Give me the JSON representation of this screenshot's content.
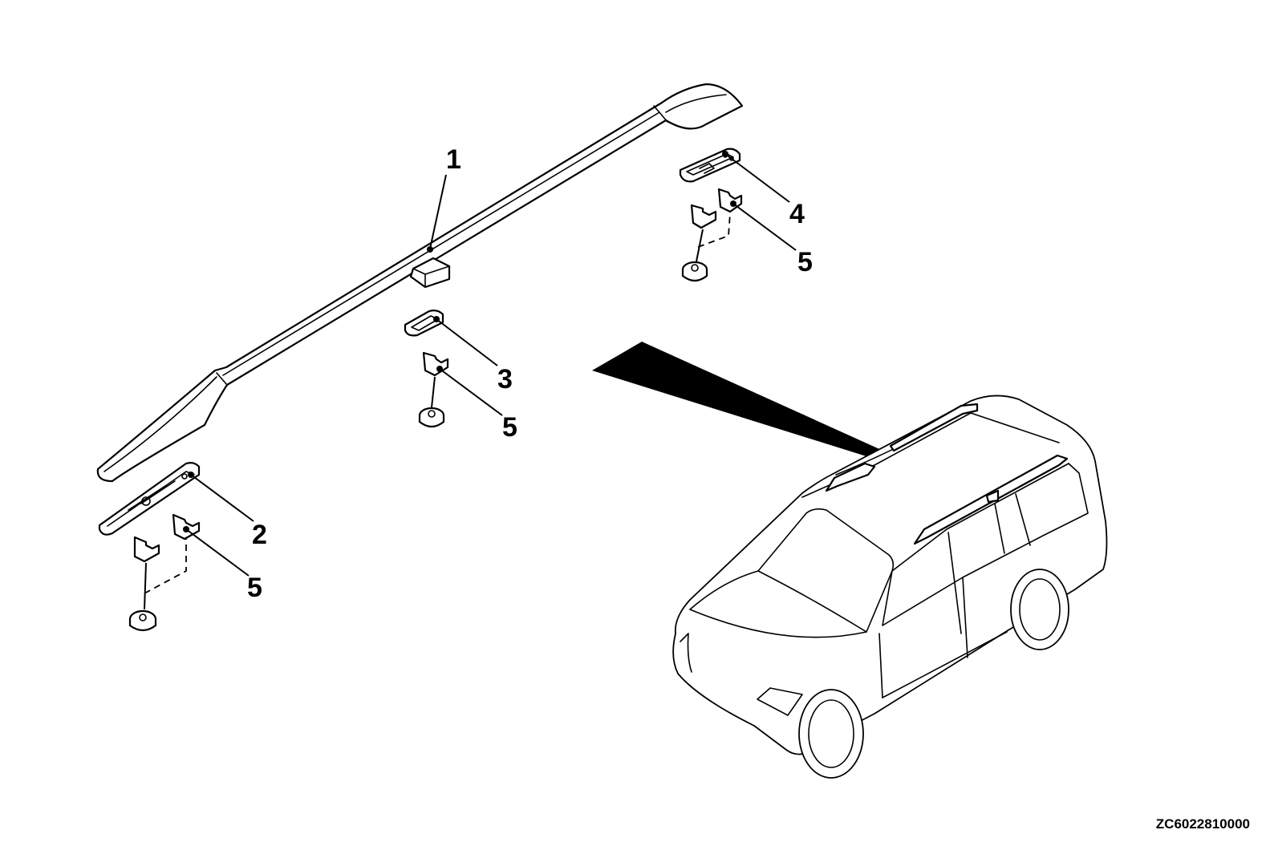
{
  "callouts": {
    "roof_rail": "1",
    "front_cover": "2",
    "center_cover": "3",
    "rear_cover": "4",
    "clip_front": "5",
    "clip_center": "5",
    "clip_rear": "5"
  },
  "reference_code": "ZC6022810000"
}
